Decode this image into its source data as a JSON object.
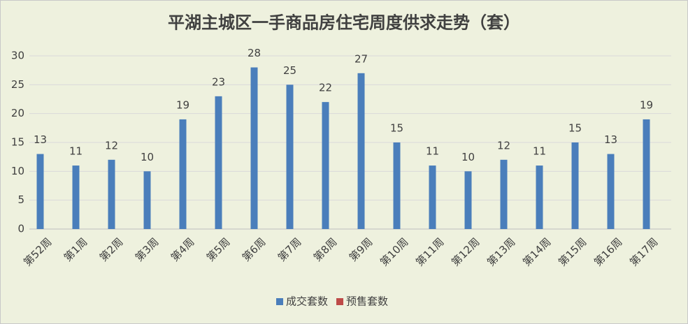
{
  "chart_data": {
    "type": "bar",
    "title": "平湖主城区一手商品房住宅周度供求走势（套）",
    "categories": [
      "第52周",
      "第1周",
      "第2周",
      "第3周",
      "第4周",
      "第5周",
      "第6周",
      "第7周",
      "第8周",
      "第9周",
      "第10周",
      "第11周",
      "第12周",
      "第13周",
      "第14周",
      "第15周",
      "第16周",
      "第17周"
    ],
    "series": [
      {
        "name": "成交套数",
        "color": "#4a7ebb",
        "values": [
          13,
          11,
          12,
          10,
          19,
          23,
          28,
          25,
          22,
          27,
          15,
          11,
          10,
          12,
          11,
          15,
          13,
          19
        ]
      },
      {
        "name": "预售套数",
        "color": "#be4b48",
        "values": [
          null,
          null,
          null,
          null,
          null,
          null,
          null,
          null,
          null,
          null,
          null,
          null,
          null,
          null,
          null,
          null,
          null,
          null
        ]
      }
    ],
    "ylim": [
      0,
      30
    ],
    "yticks": [
      0,
      5,
      10,
      15,
      20,
      25,
      30
    ],
    "grid": true,
    "legend": "bottom"
  }
}
